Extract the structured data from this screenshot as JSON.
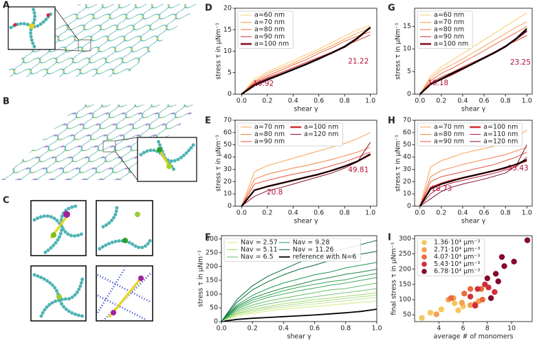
{
  "image_panels": [
    "A",
    "B",
    "C"
  ],
  "chart_data": [
    {
      "type": "line",
      "panel": "D",
      "xlabel": "shear γ",
      "ylabel": "stress τ in μNm⁻¹",
      "x": [
        0,
        0.1,
        0.2,
        0.3,
        0.4,
        0.5,
        0.6,
        0.7,
        0.8,
        0.9,
        1.0
      ],
      "xlim": [
        -0.05,
        1.05
      ],
      "xticks": [
        {
          "value": 0,
          "label": "0.0"
        },
        0.2,
        0.4,
        0.6,
        0.8,
        {
          "value": 1,
          "label": "1.0"
        }
      ],
      "ylim": [
        0,
        20
      ],
      "yticks": [
        0,
        5,
        10,
        15,
        20
      ],
      "legend": "upper left",
      "legend_ncol": 1,
      "series": [
        {
          "name": "a=60 nm",
          "color": "#fdc96a",
          "linewidth": 1,
          "values": [
            0,
            3.5,
            5.2,
            6.5,
            7.8,
            9.2,
            10.5,
            12,
            13.5,
            15,
            16
          ]
        },
        {
          "name": "a=70 nm",
          "color": "#f9a052",
          "linewidth": 1,
          "values": [
            0,
            3,
            4.8,
            6,
            7.2,
            8.6,
            10,
            11.3,
            12.8,
            14.2,
            15.5
          ]
        },
        {
          "name": "a=80 nm",
          "color": "#ef6a3c",
          "linewidth": 1,
          "values": [
            0,
            2.8,
            4.3,
            5.5,
            6.8,
            8,
            9.5,
            10.8,
            12.3,
            13.5,
            14.5
          ]
        },
        {
          "name": "a=90 nm",
          "color": "#d23a35",
          "linewidth": 1,
          "values": [
            0,
            2.5,
            3.9,
            5,
            6.2,
            7.4,
            8.6,
            9.8,
            11.2,
            12.5,
            13.8
          ]
        },
        {
          "name": "a=100 nm",
          "color": "#7a0a22",
          "linewidth": 2.5,
          "values": [
            0,
            2.2,
            3.5,
            4.6,
            5.8,
            7,
            8.3,
            9.6,
            11,
            13,
            15.5
          ]
        },
        {
          "color": "#000000",
          "linewidth": 2,
          "values": [
            0,
            2,
            3.3,
            4.5,
            5.7,
            6.9,
            8.2,
            9.6,
            11.1,
            13.1,
            15.6
          ]
        }
      ],
      "annotations": [
        "10.92",
        "21.22"
      ]
    },
    {
      "type": "line",
      "panel": "G",
      "xlabel": "shear γ",
      "ylabel": "stress τ in μNm⁻¹",
      "x": [
        0,
        0.1,
        0.2,
        0.3,
        0.4,
        0.5,
        0.6,
        0.7,
        0.8,
        0.9,
        1.0
      ],
      "xlim": [
        -0.05,
        1.05
      ],
      "xticks": [
        {
          "value": 0,
          "label": "0.0"
        },
        0.2,
        0.4,
        0.6,
        0.8,
        {
          "value": 1,
          "label": "1.0"
        }
      ],
      "ylim": [
        0,
        19
      ],
      "yticks": [
        0,
        5,
        10,
        15
      ],
      "legend": "upper left",
      "legend_ncol": 1,
      "series": [
        {
          "name": "a=60 nm",
          "color": "#fdc96a",
          "linewidth": 1,
          "values": [
            0,
            4,
            6,
            7.5,
            9,
            10.5,
            12,
            13.5,
            15,
            16.5,
            18
          ]
        },
        {
          "name": "a=70 nm",
          "color": "#f9a052",
          "linewidth": 1,
          "values": [
            0,
            3.5,
            5.3,
            6.5,
            7.8,
            9.2,
            10.6,
            12,
            13.4,
            14.8,
            16
          ]
        },
        {
          "name": "a=80 nm",
          "color": "#ef6a3c",
          "linewidth": 1,
          "values": [
            0,
            3,
            4.6,
            5.7,
            7,
            8.3,
            9.6,
            11,
            12.3,
            13.6,
            15
          ]
        },
        {
          "name": "a=90 nm",
          "color": "#d23a35",
          "linewidth": 1,
          "values": [
            0,
            2.5,
            3.8,
            4.8,
            6,
            7.1,
            8.2,
            9.4,
            10.7,
            11.8,
            13
          ]
        },
        {
          "name": "a=100 nm",
          "color": "#7a0a22",
          "linewidth": 2.5,
          "values": [
            0,
            2.2,
            3.3,
            4.4,
            5.6,
            6.8,
            8,
            9.2,
            10.5,
            12.2,
            14
          ]
        },
        {
          "color": "#000000",
          "linewidth": 2,
          "values": [
            0,
            2.2,
            3.4,
            4.6,
            5.7,
            6.8,
            8,
            9.2,
            10.6,
            12.3,
            14.5
          ]
        }
      ],
      "annotations": [
        "10.18",
        "23.25"
      ]
    },
    {
      "type": "line",
      "panel": "E",
      "xlabel": "shear γ",
      "ylabel": "stress τ in μNm⁻¹",
      "x": [
        0,
        0.1,
        0.2,
        0.3,
        0.4,
        0.5,
        0.6,
        0.7,
        0.8,
        0.9,
        1.0
      ],
      "xlim": [
        -0.05,
        1.05
      ],
      "xticks": [
        {
          "value": 0,
          "label": "0.0"
        },
        0.2,
        0.4,
        0.6,
        0.8,
        {
          "value": 1,
          "label": "1.0"
        }
      ],
      "ylim": [
        0,
        70
      ],
      "yticks": [
        0,
        10,
        20,
        30,
        40,
        50,
        60,
        70
      ],
      "legend": "upper left",
      "legend_ncol": 2,
      "series": [
        {
          "name": "a=70 nm",
          "color": "#f9a052",
          "linewidth": 1,
          "values": [
            0,
            28,
            33,
            36,
            39,
            42,
            45,
            48,
            51,
            55,
            60
          ]
        },
        {
          "name": "a=80 nm",
          "color": "#f47f45",
          "linewidth": 1,
          "values": [
            0,
            22,
            26,
            28.5,
            31,
            33,
            35.5,
            38,
            41,
            44,
            48
          ]
        },
        {
          "name": "a=90 nm",
          "color": "#e4503a",
          "linewidth": 1,
          "values": [
            0,
            18,
            21,
            23.5,
            26,
            28,
            30,
            33,
            36,
            40,
            44
          ]
        },
        {
          "name": "a=100 nm",
          "color": "#d22b2b",
          "linewidth": 2.5,
          "values": [
            0,
            13,
            16,
            18.5,
            21,
            23.5,
            26,
            29,
            32.5,
            36.5,
            42
          ]
        },
        {
          "name": "a=120 nm",
          "color": "#8b0a2a",
          "linewidth": 1,
          "values": [
            0,
            8,
            12.5,
            15,
            18,
            21,
            24,
            27,
            31,
            36,
            52
          ]
        },
        {
          "color": "#000000",
          "linewidth": 2,
          "values": [
            0,
            13,
            16,
            18.5,
            21,
            23.5,
            26,
            29,
            32.5,
            36.5,
            42.5
          ]
        }
      ],
      "annotations": [
        "20.8",
        "49.81"
      ]
    },
    {
      "type": "line",
      "panel": "H",
      "xlabel": "shear γ",
      "ylabel": "stress τ in μNm⁻¹",
      "x": [
        0,
        0.1,
        0.2,
        0.3,
        0.4,
        0.5,
        0.6,
        0.7,
        0.8,
        0.9,
        1.0
      ],
      "xlim": [
        -0.05,
        1.05
      ],
      "xticks": [
        {
          "value": 0,
          "label": "0.0"
        },
        0.2,
        0.4,
        0.6,
        0.8,
        {
          "value": 1,
          "label": "1.0"
        }
      ],
      "ylim": [
        0,
        70
      ],
      "yticks": [
        0,
        10,
        20,
        30,
        40,
        50,
        60,
        70
      ],
      "legend": "upper left",
      "legend_ncol": 2,
      "series": [
        {
          "name": "a=70 nm",
          "color": "#f9a052",
          "linewidth": 1,
          "values": [
            0,
            32,
            37,
            40,
            43,
            45,
            47,
            49,
            52,
            56,
            62
          ]
        },
        {
          "name": "a=80 nm",
          "color": "#f47f45",
          "linewidth": 1,
          "values": [
            0,
            24,
            29,
            31.5,
            34,
            36,
            38,
            40,
            42,
            45,
            48
          ]
        },
        {
          "name": "a=90 nm",
          "color": "#e4503a",
          "linewidth": 1,
          "values": [
            0,
            20,
            24,
            26,
            28,
            30,
            32,
            34,
            37,
            40,
            44
          ]
        },
        {
          "name": "a=100 nm",
          "color": "#d22b2b",
          "linewidth": 2.5,
          "values": [
            0,
            15,
            18.5,
            21,
            23,
            25,
            27,
            29,
            31,
            34,
            37
          ]
        },
        {
          "name": "a=110 nm",
          "color": "#b3173a",
          "linewidth": 1,
          "values": [
            0,
            10,
            16,
            19,
            21,
            23,
            25,
            27,
            29.5,
            32,
            40
          ]
        },
        {
          "name": "a=120 nm",
          "color": "#7a0a3a",
          "linewidth": 1,
          "values": [
            0,
            6,
            12,
            15.5,
            18,
            20,
            22,
            24.5,
            27,
            33,
            50
          ]
        },
        {
          "color": "#000000",
          "linewidth": 2,
          "values": [
            0,
            14,
            18,
            20.5,
            23,
            25,
            27,
            29,
            31.5,
            34,
            38
          ]
        }
      ],
      "annotations": [
        "18.73",
        "35.43"
      ]
    },
    {
      "type": "line",
      "panel": "F",
      "xlabel": "shear γ",
      "ylabel": "stress τ in μNm⁻¹",
      "x": [
        0,
        0.1,
        0.2,
        0.3,
        0.4,
        0.5,
        0.6,
        0.7,
        0.8,
        0.9,
        1.0
      ],
      "xlim": [
        0,
        1
      ],
      "xticks": [
        {
          "value": 0,
          "label": "0.0"
        },
        0.2,
        0.4,
        0.6,
        0.8,
        {
          "value": 1,
          "label": "1.0"
        }
      ],
      "ylim": [
        0,
        312
      ],
      "yticks": [
        0,
        50,
        100,
        150,
        200,
        250,
        300
      ],
      "legend": "upper left",
      "legend_ncol": 2,
      "series": [
        {
          "name": "Nav = 2.57",
          "color": "#d4eb7c",
          "linewidth": 1,
          "values": [
            0,
            20,
            30,
            38,
            45,
            50,
            55,
            60,
            65,
            70,
            75
          ]
        },
        {
          "name": "Nav = 5.11",
          "color": "#a6d96a",
          "linewidth": 1,
          "values": [
            0,
            30,
            45,
            55,
            65,
            72,
            80,
            85,
            92,
            98,
            105
          ]
        },
        {
          "name": "Nav = 6.5",
          "color": "#66bd63",
          "linewidth": 1,
          "values": [
            0,
            40,
            60,
            75,
            85,
            95,
            105,
            115,
            120,
            130,
            140
          ]
        },
        {
          "name": "Nav = 9.28",
          "color": "#1a9850",
          "linewidth": 1,
          "values": [
            0,
            60,
            95,
            120,
            140,
            155,
            170,
            180,
            195,
            205,
            215
          ]
        },
        {
          "name": "Nav = 11.26",
          "color": "#006837",
          "linewidth": 1,
          "values": [
            0,
            80,
            130,
            165,
            190,
            215,
            235,
            250,
            265,
            280,
            295
          ]
        },
        {
          "name": "reference with N=6",
          "color": "#000000",
          "linewidth": 1.8,
          "values": [
            0,
            8,
            12,
            15,
            18,
            21,
            24,
            28,
            32,
            37,
            45
          ]
        },
        {
          "color": "#c2e699",
          "linewidth": 1,
          "values": [
            0,
            25,
            35,
            45,
            52,
            58,
            64,
            70,
            76,
            82,
            88
          ]
        },
        {
          "color": "#78c679",
          "linewidth": 1,
          "values": [
            0,
            35,
            52,
            64,
            74,
            82,
            90,
            98,
            105,
            112,
            120
          ]
        },
        {
          "color": "#41ab5d",
          "linewidth": 1,
          "values": [
            0,
            45,
            70,
            88,
            100,
            112,
            122,
            132,
            140,
            150,
            160
          ]
        },
        {
          "color": "#238443",
          "linewidth": 1,
          "values": [
            0,
            55,
            85,
            105,
            122,
            135,
            150,
            160,
            172,
            180,
            190
          ]
        },
        {
          "color": "#31a354",
          "linewidth": 1,
          "values": [
            0,
            50,
            78,
            95,
            112,
            125,
            135,
            145,
            152,
            165,
            175
          ]
        },
        {
          "color": "#addd8e",
          "linewidth": 1,
          "values": [
            0,
            28,
            40,
            50,
            58,
            65,
            72,
            78,
            84,
            90,
            96
          ]
        },
        {
          "color": "#006837",
          "linewidth": 1,
          "values": [
            0,
            70,
            115,
            145,
            170,
            190,
            205,
            222,
            235,
            245,
            255
          ]
        }
      ]
    },
    {
      "type": "scatter",
      "panel": "I",
      "xlabel": "average # of monomers",
      "ylabel": "final stress τ in μNm⁻¹",
      "xlim": [
        2,
        11.7
      ],
      "xticks": [
        4,
        6,
        8,
        10
      ],
      "ylim": [
        28,
        310
      ],
      "yticks": [
        50,
        100,
        150,
        200,
        250,
        300
      ],
      "legend": "upper left",
      "legend_ncol": 1,
      "series": [
        {
          "name": "1.36·10⁴ μm⁻³",
          "color": "#f6c75f",
          "x": [
            2.6,
            3.3,
            4.2,
            5.3,
            5.6,
            6.0
          ],
          "values": [
            40,
            57,
            68,
            88,
            65,
            78
          ]
        },
        {
          "name": "2.71·10⁴ μm⁻³",
          "color": "#f4a052",
          "x": [
            3.8,
            4.8,
            5.2,
            5.9,
            6.6,
            7.3
          ],
          "values": [
            52,
            100,
            105,
            90,
            82,
            95
          ]
        },
        {
          "name": "4.07·10⁴ μm⁻³",
          "color": "#ea6a3c",
          "x": [
            5.0,
            6.1,
            6.6,
            7.0,
            7.6,
            7.5
          ],
          "values": [
            105,
            120,
            135,
            85,
            100,
            135
          ]
        },
        {
          "name": "5.43·10⁴ μm⁻³",
          "color": "#cf2f3a",
          "x": [
            6.6,
            7.0,
            7.2,
            7.8,
            8.1,
            8.6
          ],
          "values": [
            110,
            80,
            135,
            150,
            140,
            125
          ]
        },
        {
          "name": "6.78·10⁴ μm⁻³",
          "color": "#85082c",
          "x": [
            8.0,
            8.3,
            8.7,
            8.9,
            9.2,
            9.4,
            10.2,
            11.3
          ],
          "values": [
            170,
            105,
            185,
            160,
            240,
            210,
            225,
            295
          ]
        }
      ]
    }
  ]
}
